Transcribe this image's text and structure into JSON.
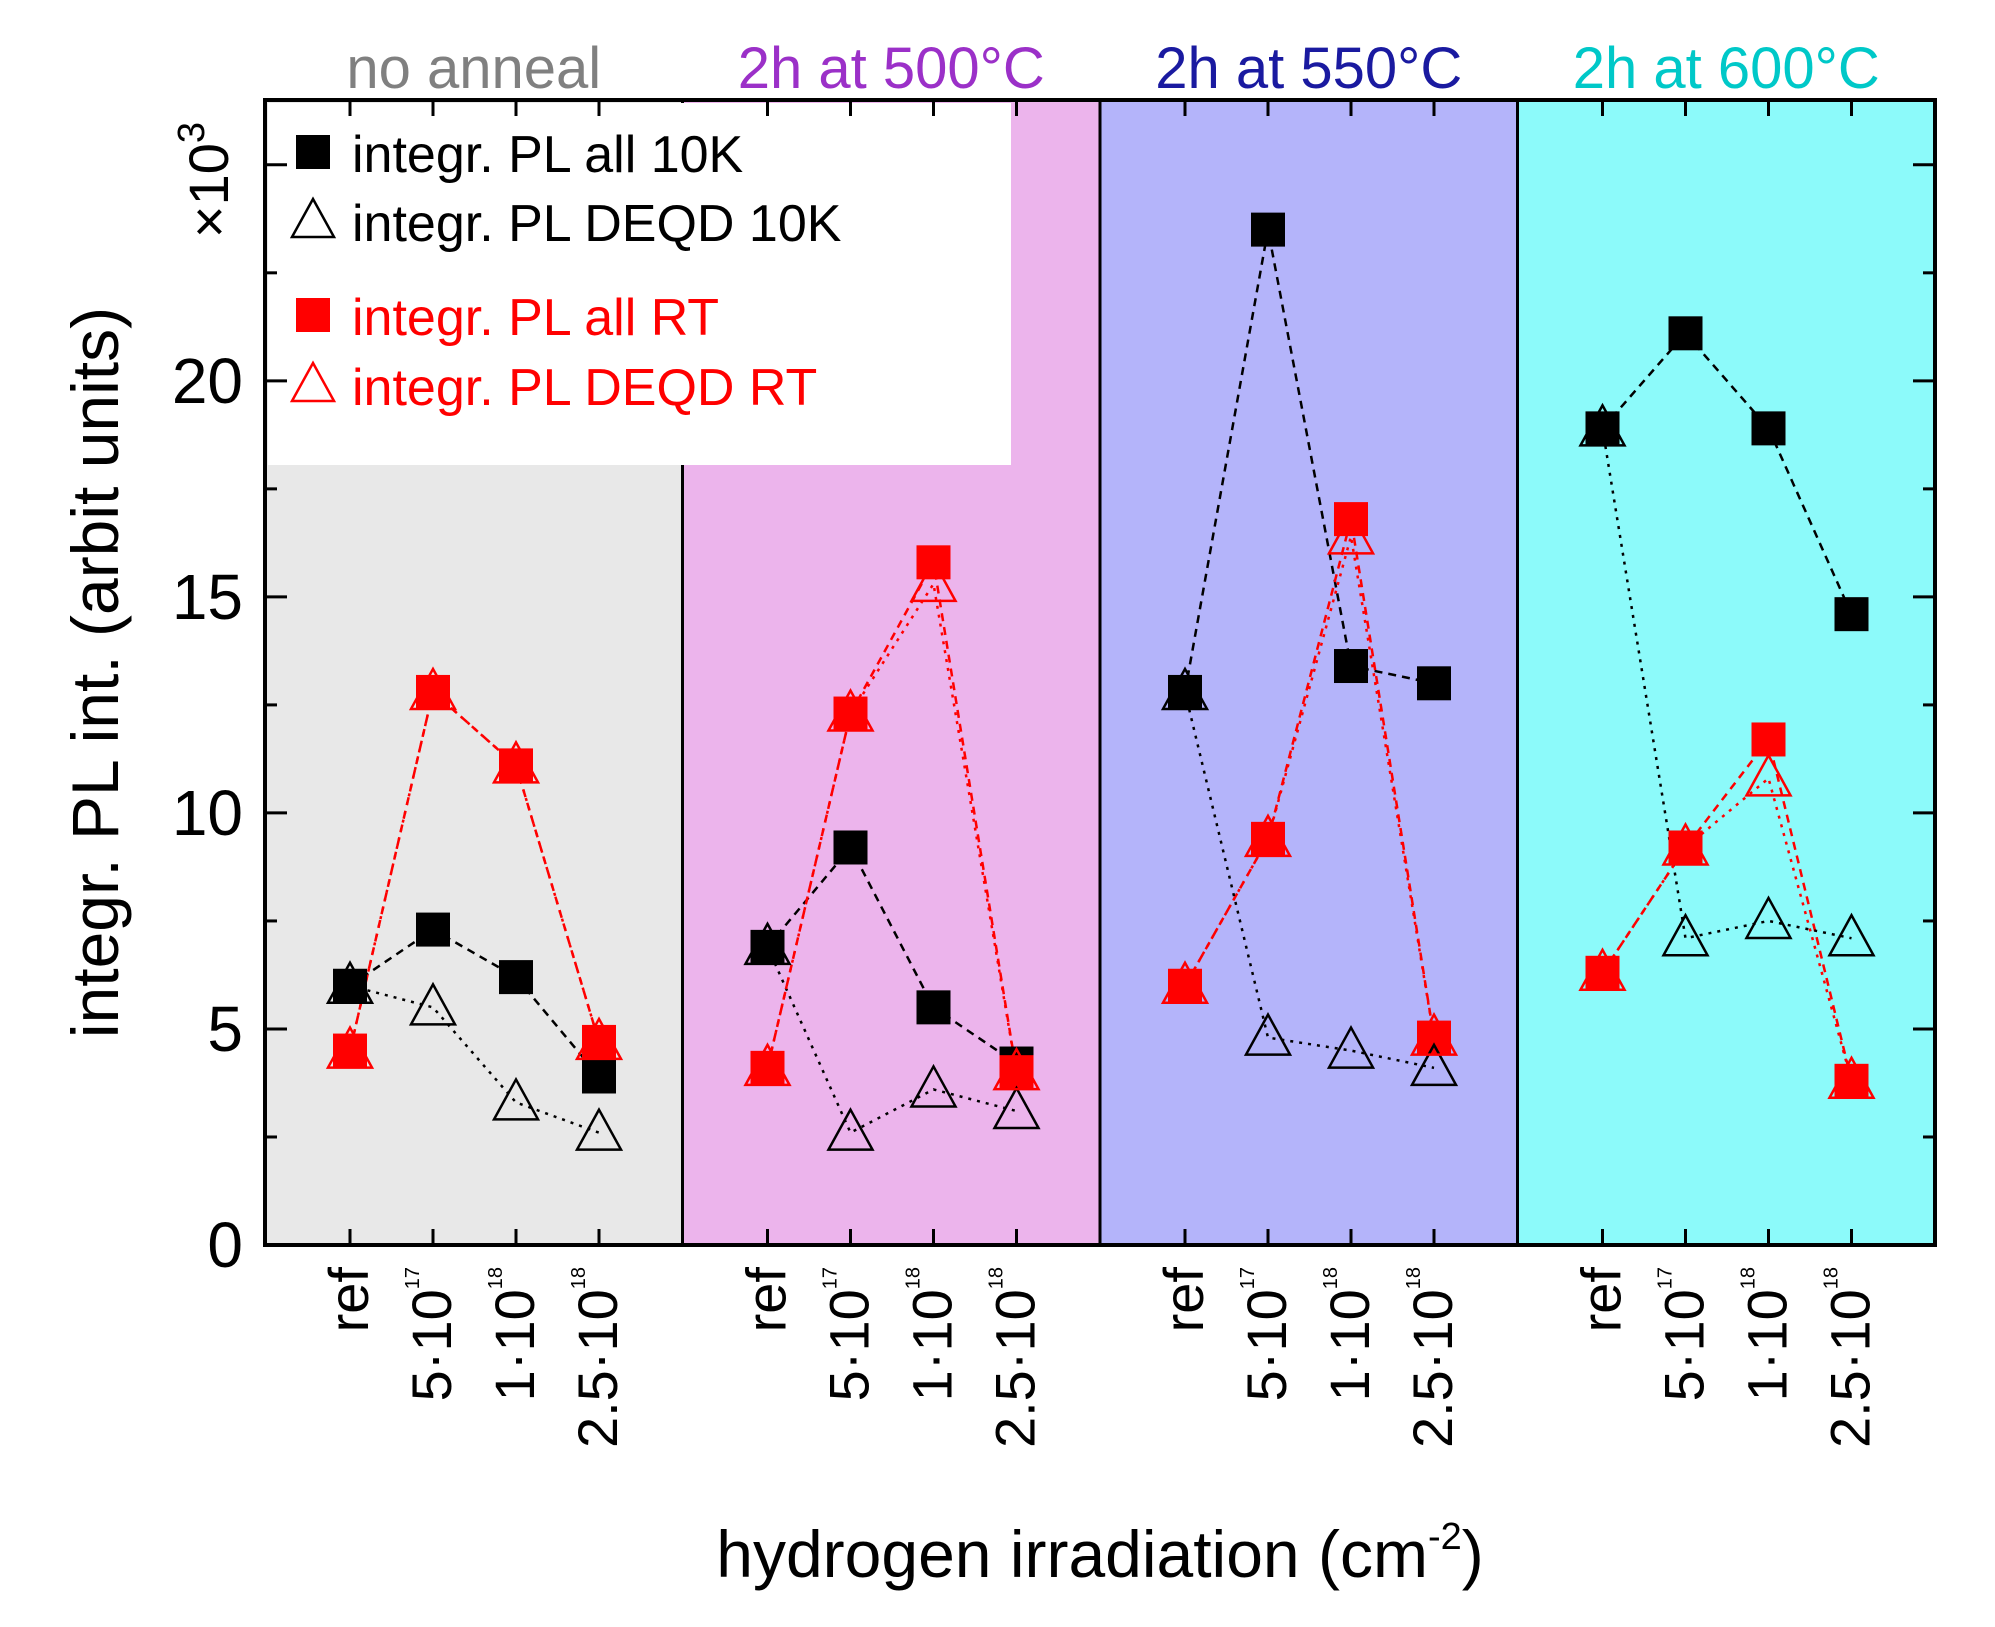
{
  "chart_data": {
    "type": "scatter",
    "xlabel": "hydrogen irradiation (cm",
    "xlabel_sup": "-2",
    "xlabel_close": ")",
    "ylabel": "integr. PL int. (arbit units)",
    "y_multiplier_prefix": "×10",
    "y_multiplier_exp": "3",
    "ylim": [
      0,
      26.5
    ],
    "yticks": [
      "0",
      "5",
      "10",
      "15",
      "20"
    ],
    "grid": false,
    "legend_position": "top-left",
    "x_tick_labels": [
      {
        "base": "ref",
        "exp": ""
      },
      {
        "base": "5·10",
        "exp": "17"
      },
      {
        "base": "1·10",
        "exp": "18"
      },
      {
        "base": "2.5·10",
        "exp": "18"
      }
    ],
    "groups": [
      {
        "title": "no anneal",
        "title_color": "#808080",
        "bg_color": "#e8e8e8"
      },
      {
        "title": "2h at 500°C",
        "title_color": "#9b30c8",
        "bg_color": "#ecb4ec"
      },
      {
        "title": "2h at 550°C",
        "title_color": "#1a1aa0",
        "bg_color": "#b4b4fa"
      },
      {
        "title": "2h at 600°C",
        "title_color": "#00c8c8",
        "bg_color": "#8cfafa"
      }
    ],
    "series": [
      {
        "name": "integr. PL all 10K",
        "color": "#000000",
        "marker": "square-filled",
        "line": "dashed",
        "values": [
          [
            6.0,
            7.3,
            6.2,
            3.9
          ],
          [
            6.9,
            9.2,
            5.5,
            4.2
          ],
          [
            12.8,
            23.5,
            13.4,
            13.0
          ],
          [
            18.9,
            21.1,
            18.9,
            14.6
          ]
        ]
      },
      {
        "name": "integr. PL DEQD 10K",
        "color": "#000000",
        "marker": "triangle-open",
        "line": "dotted",
        "values": [
          [
            6.0,
            5.5,
            3.3,
            2.6
          ],
          [
            6.9,
            2.6,
            3.6,
            3.1
          ],
          [
            12.8,
            4.8,
            4.5,
            4.1
          ],
          [
            18.9,
            7.1,
            7.5,
            7.1
          ]
        ]
      },
      {
        "name": "integr. PL all RT",
        "color": "#ff0000",
        "marker": "square-filled",
        "line": "dashed",
        "values": [
          [
            4.5,
            12.8,
            11.1,
            4.7
          ],
          [
            4.1,
            12.3,
            15.8,
            4.0
          ],
          [
            6.0,
            9.4,
            16.8,
            4.8
          ],
          [
            6.3,
            9.2,
            11.7,
            3.8
          ]
        ]
      },
      {
        "name": "integr. PL DEQD RT",
        "color": "#ff0000",
        "marker": "triangle-open",
        "line": "dotted",
        "values": [
          [
            4.5,
            12.8,
            11.1,
            4.7
          ],
          [
            4.1,
            12.3,
            15.3,
            4.0
          ],
          [
            6.0,
            9.4,
            16.4,
            4.8
          ],
          [
            6.3,
            9.2,
            10.8,
            3.8
          ]
        ]
      }
    ]
  }
}
